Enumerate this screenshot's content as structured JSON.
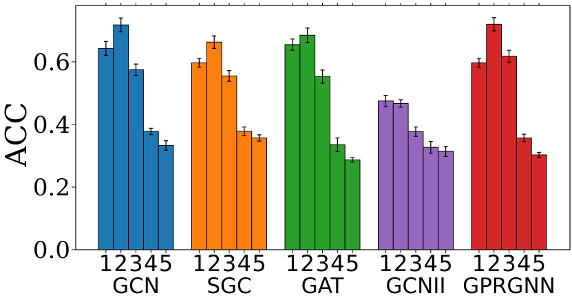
{
  "chart_data": {
    "type": "bar",
    "title": "",
    "xlabel": "",
    "ylabel": "ACC",
    "ylim": [
      0,
      0.78
    ],
    "yticks": [
      "0.0",
      "0.2",
      "0.4",
      "0.6"
    ],
    "ytick_values": [
      0,
      0.2,
      0.4,
      0.6
    ],
    "bar_indices": [
      "1",
      "2",
      "3",
      "4",
      "5"
    ],
    "groups": [
      {
        "name": "GCN",
        "color": "#1f77b4",
        "values": [
          0.643,
          0.718,
          0.575,
          0.378,
          0.333
        ],
        "errors": [
          0.022,
          0.022,
          0.018,
          0.01,
          0.015
        ]
      },
      {
        "name": "SGC",
        "color": "#ff7f0e",
        "values": [
          0.597,
          0.663,
          0.555,
          0.378,
          0.357
        ],
        "errors": [
          0.014,
          0.02,
          0.017,
          0.014,
          0.01
        ]
      },
      {
        "name": "GAT",
        "color": "#2ca02c",
        "values": [
          0.655,
          0.685,
          0.553,
          0.335,
          0.287
        ],
        "errors": [
          0.018,
          0.023,
          0.021,
          0.022,
          0.007
        ]
      },
      {
        "name": "GCNII",
        "color": "#9467bd",
        "values": [
          0.475,
          0.467,
          0.377,
          0.327,
          0.314
        ],
        "errors": [
          0.018,
          0.012,
          0.015,
          0.019,
          0.016
        ]
      },
      {
        "name": "GPRGNN",
        "color": "#d62728",
        "values": [
          0.597,
          0.72,
          0.618,
          0.357,
          0.303
        ],
        "errors": [
          0.014,
          0.021,
          0.019,
          0.012,
          0.008
        ]
      }
    ]
  }
}
